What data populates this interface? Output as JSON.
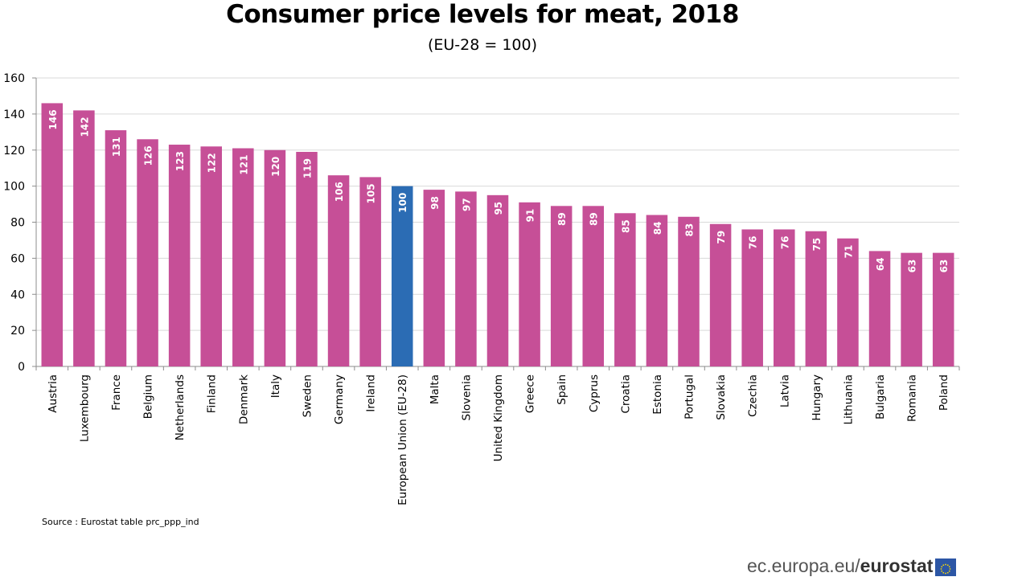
{
  "title": "Consumer price levels for meat, 2018",
  "subtitle": "(EU-28 = 100)",
  "source": "Source : Eurostat table prc_ppp_ind",
  "brand": {
    "domain": "ec.europa.eu/",
    "name": "eurostat",
    "logo_icon": "eu-flag-icon"
  },
  "colors": {
    "bar": "#c64f97",
    "highlight": "#2b6cb4",
    "grid": "#d9d9d9",
    "flag": "#2c56a5",
    "flag_stars": "#ffdd00"
  },
  "chart_data": {
    "type": "bar",
    "categories": [
      "Austria",
      "Luxembourg",
      "France",
      "Belgium",
      "Netherlands",
      "Finland",
      "Denmark",
      "Italy",
      "Sweden",
      "Germany",
      "Ireland",
      "European Union (EU-28)",
      "Malta",
      "Slovenia",
      "United Kingdom",
      "Greece",
      "Spain",
      "Cyprus",
      "Croatia",
      "Estonia",
      "Portugal",
      "Slovakia",
      "Czechia",
      "Latvia",
      "Hungary",
      "Lithuania",
      "Bulgaria",
      "Romania",
      "Poland"
    ],
    "values": [
      146,
      142,
      131,
      126,
      123,
      122,
      121,
      120,
      119,
      106,
      105,
      100,
      98,
      97,
      95,
      91,
      89,
      89,
      85,
      84,
      83,
      79,
      76,
      76,
      75,
      71,
      64,
      63,
      63
    ],
    "highlight_category": "European Union (EU-28)",
    "title": "Consumer price levels for meat, 2018",
    "subtitle": "(EU-28 = 100)",
    "xlabel": "",
    "ylabel": "",
    "ylim": [
      0,
      160
    ],
    "yticks": [
      0,
      20,
      40,
      60,
      80,
      100,
      120,
      140,
      160
    ],
    "grid": true,
    "legend": "none"
  }
}
